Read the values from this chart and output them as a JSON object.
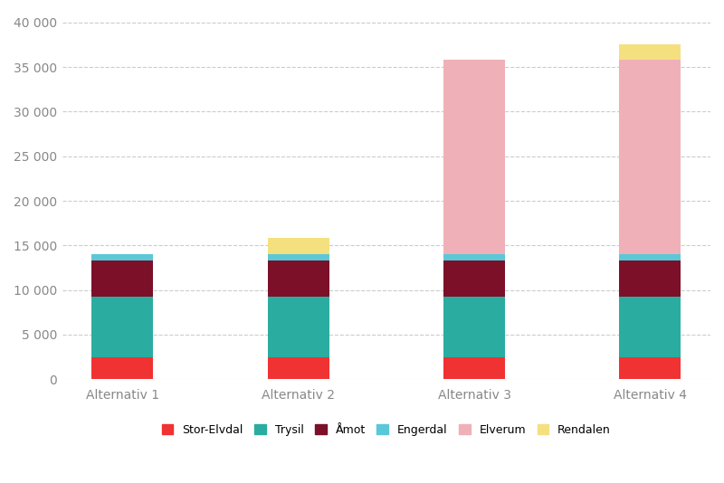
{
  "categories": [
    "Alternativ 1",
    "Alternativ 2",
    "Alternativ 3",
    "Alternativ 4"
  ],
  "series": {
    "Stor-Elvdal": [
      2500,
      2500,
      2500,
      2500
    ],
    "Trysil": [
      6800,
      6800,
      6800,
      6800
    ],
    "Åmot": [
      4000,
      4000,
      4000,
      4000
    ],
    "Engerdal": [
      700,
      700,
      700,
      700
    ],
    "Elverum": [
      0,
      0,
      21800,
      21800
    ],
    "Rendalen": [
      0,
      1800,
      0,
      1800
    ]
  },
  "colors": {
    "Stor-Elvdal": "#f03232",
    "Trysil": "#2aada0",
    "Åmot": "#7b1028",
    "Engerdal": "#5bc8d8",
    "Elverum": "#f0b0b8",
    "Rendalen": "#f5e080"
  },
  "ylim": [
    0,
    41000
  ],
  "yticks": [
    0,
    5000,
    10000,
    15000,
    20000,
    25000,
    30000,
    35000,
    40000
  ],
  "ytick_labels": [
    "0",
    "5 000",
    "10 000",
    "15 000",
    "20 000",
    "25 000",
    "30 000",
    "35 000",
    "40 000"
  ],
  "legend_order": [
    "Stor-Elvdal",
    "Trysil",
    "Åmot",
    "Engerdal",
    "Elverum",
    "Rendalen"
  ],
  "background_color": "#ffffff",
  "grid_color": "#cccccc",
  "bar_width": 0.35
}
